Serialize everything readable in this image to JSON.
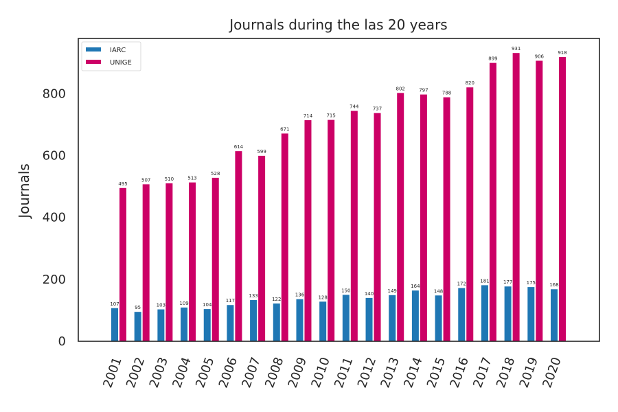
{
  "chart_data": {
    "type": "bar",
    "title": "Journals during the las 20 years",
    "xlabel": "",
    "ylabel": "Journals",
    "ylim": [
      0,
      978
    ],
    "yticks": [
      0,
      200,
      400,
      600,
      800
    ],
    "grid": false,
    "legend_position": "top-left",
    "categories": [
      "2001",
      "2002",
      "2003",
      "2004",
      "2005",
      "2006",
      "2007",
      "2008",
      "2009",
      "2010",
      "2011",
      "2012",
      "2013",
      "2014",
      "2015",
      "2016",
      "2017",
      "2018",
      "2019",
      "2020"
    ],
    "series": [
      {
        "name": "IARC",
        "color": "#1f77b4",
        "values": [
          107,
          95,
          103,
          109,
          104,
          117,
          133,
          122,
          136,
          128,
          150,
          140,
          149,
          164,
          148,
          172,
          181,
          177,
          175,
          168
        ]
      },
      {
        "name": "UNIGE",
        "color": "#cc0066",
        "values": [
          495,
          507,
          510,
          513,
          528,
          614,
          599,
          671,
          714,
          715,
          744,
          737,
          802,
          797,
          788,
          820,
          899,
          931,
          906,
          918
        ]
      }
    ]
  }
}
